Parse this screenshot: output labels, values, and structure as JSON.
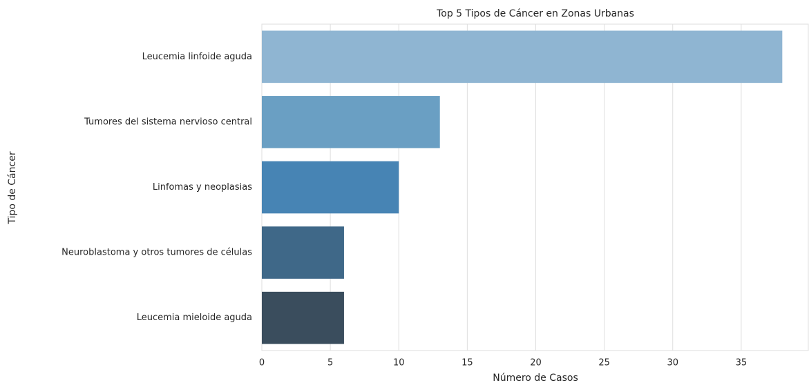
{
  "chart_data": {
    "type": "barh",
    "title": "Top 5 Tipos de Cáncer en Zonas Urbanas",
    "x_label": "Número de Casos",
    "y_label": "Tipo de Cáncer",
    "categories": [
      "Leucemia linfoide aguda",
      "Tumores del sistema nervioso central",
      "Linfomas y neoplasias",
      "Neuroblastoma y otros tumores de células",
      "Leucemia mieloide aguda"
    ],
    "values": [
      38,
      13,
      10,
      6,
      6
    ],
    "colors": [
      "#8fb5d2",
      "#6a9fc3",
      "#4784b4",
      "#3f6888",
      "#3a4d5d"
    ],
    "xlim": [
      0,
      39.9
    ],
    "xticks": [
      0,
      5,
      10,
      15,
      20,
      25,
      30,
      35
    ],
    "grid": true
  }
}
